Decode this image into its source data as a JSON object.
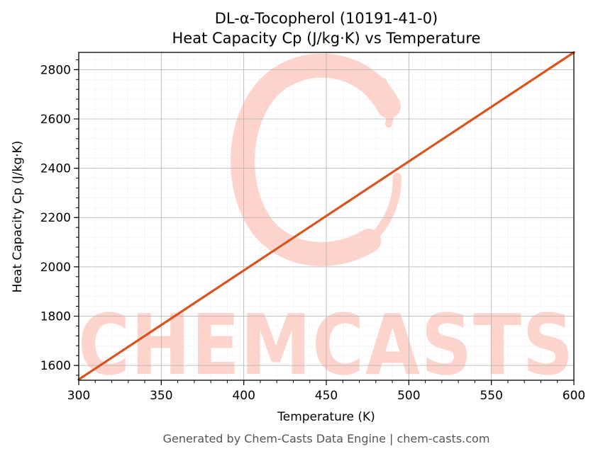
{
  "chart_data": {
    "type": "line",
    "title_line1": "DL-α-Tocopherol (10191-41-0)",
    "title_line2": "Heat Capacity Cp (J/kg·K) vs Temperature",
    "xlabel": "Temperature (K)",
    "ylabel": "Heat Capacity Cp (J/kg·K)",
    "xlim": [
      300,
      600
    ],
    "ylim": [
      1540,
      2870
    ],
    "x_ticks": [
      300,
      350,
      400,
      450,
      500,
      550,
      600
    ],
    "y_ticks": [
      1600,
      1800,
      2000,
      2200,
      2400,
      2600,
      2800
    ],
    "grid": true,
    "series": [
      {
        "color": "#d9531e",
        "x": [
          300,
          600
        ],
        "y": [
          1543,
          2870
        ]
      }
    ]
  },
  "watermark": {
    "text": "CHEMCASTS",
    "color": "#fdd3cb"
  },
  "footer": "Generated by Chem-Casts Data Engine | chem-casts.com"
}
